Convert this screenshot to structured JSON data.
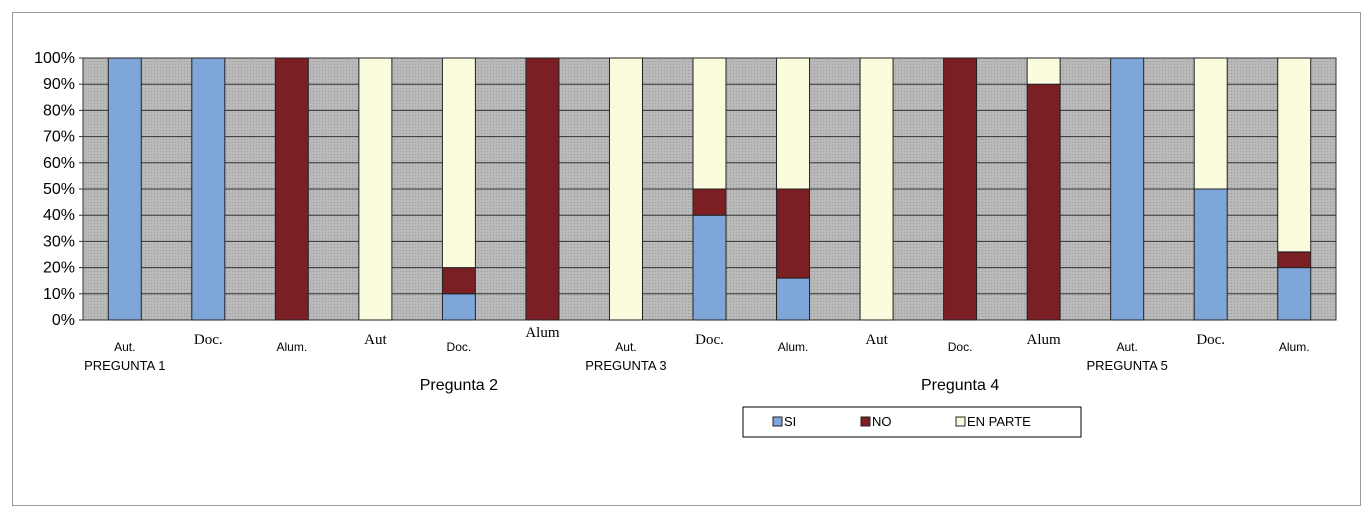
{
  "chart_data": {
    "type": "bar",
    "stacked": true,
    "percent": true,
    "ylim": [
      0,
      100
    ],
    "yticks": [
      "0%",
      "10%",
      "20%",
      "30%",
      "40%",
      "50%",
      "60%",
      "70%",
      "80%",
      "90%",
      "100%"
    ],
    "grid": true,
    "legend_position": "bottom",
    "categories": [
      "Aut.",
      "Doc.",
      "Alum.",
      "Aut",
      "Doc.",
      "Alum",
      "Aut.",
      "Doc.",
      "Alum.",
      "Aut",
      "Doc.",
      "Alum",
      "Aut.",
      "Doc.",
      "Alum."
    ],
    "category_fonts": [
      "sans",
      "serif",
      "sans",
      "serif",
      "sans",
      "serif",
      "sans",
      "serif",
      "sans",
      "serif",
      "sans",
      "serif",
      "sans",
      "serif",
      "sans"
    ],
    "groups": [
      {
        "label": "PREGUNTA 1",
        "row": 1
      },
      {
        "label": "Pregunta 2",
        "row": 2
      },
      {
        "label": "PREGUNTA 3",
        "row": 1
      },
      {
        "label": "Pregunta 4",
        "row": 2
      },
      {
        "label": "PREGUNTA 5",
        "row": 1
      }
    ],
    "series": [
      {
        "name": "SI",
        "color": "#7ea6d8",
        "values": [
          100,
          100,
          0,
          0,
          10,
          0,
          0,
          40,
          16,
          0,
          0,
          0,
          100,
          50,
          20
        ]
      },
      {
        "name": "NO",
        "color": "#7b1f24",
        "values": [
          0,
          0,
          100,
          0,
          10,
          100,
          0,
          10,
          34,
          0,
          100,
          90,
          0,
          0,
          6
        ]
      },
      {
        "name": "EN PARTE",
        "color": "#fbfbde",
        "values": [
          0,
          0,
          0,
          100,
          80,
          0,
          100,
          50,
          50,
          100,
          0,
          10,
          0,
          50,
          74
        ]
      }
    ]
  }
}
